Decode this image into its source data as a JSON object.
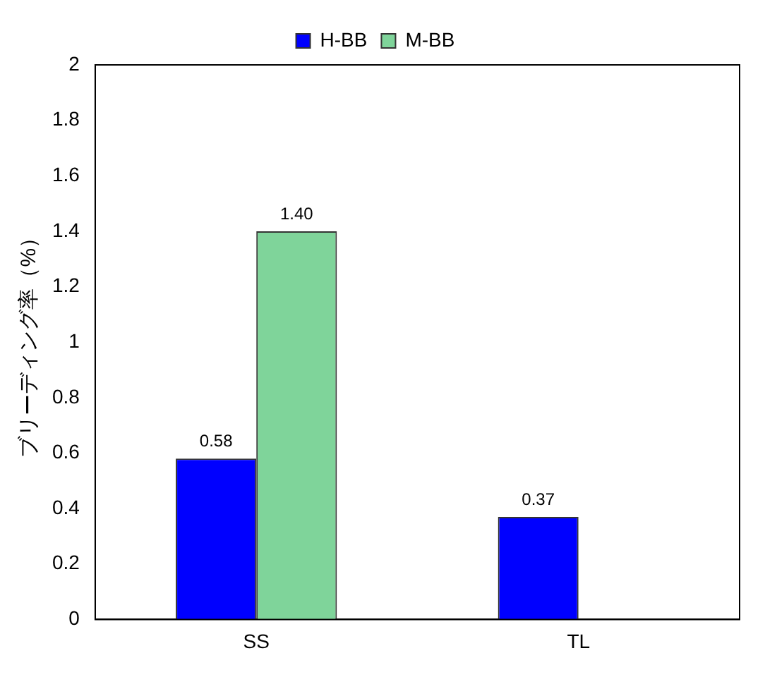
{
  "chart_data": {
    "type": "bar",
    "ylabel": "ブリーディング率（%）",
    "categories": [
      "SS",
      "TL"
    ],
    "series": [
      {
        "name": "H-BB",
        "color": "#0000ff",
        "values": [
          0.58,
          0.37
        ],
        "value_labels": [
          "0.58",
          "0.37"
        ]
      },
      {
        "name": "M-BB",
        "color": "#7fd49a",
        "values": [
          1.4,
          null
        ],
        "value_labels": [
          "1.40",
          null
        ]
      }
    ],
    "ylim": [
      0,
      2
    ],
    "yticks": [
      0,
      0.2,
      0.4,
      0.6,
      0.8,
      1,
      1.2,
      1.4,
      1.6,
      1.8,
      2
    ],
    "grid": false,
    "legend": "top"
  }
}
